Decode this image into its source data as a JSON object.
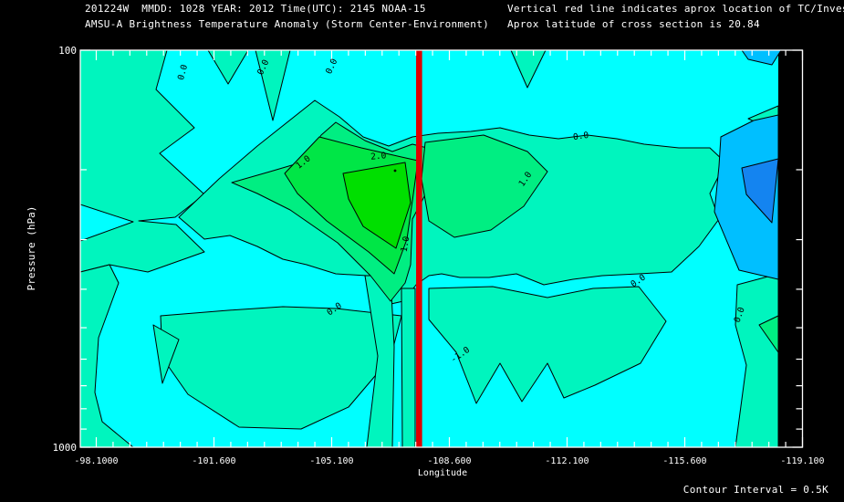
{
  "header": {
    "line1": "201224W  MMDD: 1028 YEAR: 2012 Time(UTC): 2145 NOAA-15",
    "line2": "AMSU-A Brightness Temperature Anomaly (Storm Center-Environment)",
    "note1": "Vertical red line indicates aprox location of TC/Invest",
    "note2": "Aprox latitude of cross section is 20.84"
  },
  "footer": {
    "contour_interval_label": "Contour Interval = 0.5K"
  },
  "chart_data": {
    "type": "contour",
    "title": "AMSU-A Brightness Temperature Anomaly (Storm Center-Environment)",
    "storm_id": "201224W",
    "date_mmdd": "1028",
    "year": "2012",
    "time_utc": "2145",
    "satellite": "NOAA-15",
    "xlabel": "Longitude",
    "ylabel": "Pressure (hPa)",
    "x_tick_labels": [
      "-98.1000",
      "-101.600",
      "-105.100",
      "-108.600",
      "-112.100",
      "-115.600",
      "-119.100"
    ],
    "x_tick_values": [
      -98.1,
      -101.6,
      -105.1,
      -108.6,
      -112.1,
      -115.6,
      -119.1
    ],
    "x_minor_step_deg": 0.5,
    "xlim": [
      -98.1,
      -119.1
    ],
    "y_tick_labels": [
      "100",
      "1000"
    ],
    "y_tick_values": [
      100,
      1000
    ],
    "y_minor_ticks": [
      200,
      300,
      400,
      500,
      600,
      700,
      800,
      900
    ],
    "ylim": [
      100,
      1000
    ],
    "y_scale": "log",
    "grid": false,
    "contour_interval_K": 0.5,
    "labeled_contours_K": [
      -1.0,
      0.0,
      1.0,
      2.0
    ],
    "red_line_longitude": -107.7,
    "cross_section_latitude": 20.84,
    "warm_core": {
      "max_anomaly_K": 2.0,
      "pressure_hPa": 300,
      "longitude": -106.5
    },
    "colors": {
      "background": "#000000",
      "text": "#FFFFFF",
      "frame": "#FFFFFF",
      "contour_line": "#000000",
      "red_line": "#DE0000",
      "cyan": "#00FFFF",
      "teal": "#00F5BE",
      "spring": "#00EE82",
      "green": "#00E646",
      "core": "#00DF00",
      "light_blue": "#00BFFF",
      "blue": "#1484F0"
    },
    "contour_labels": [
      {
        "t": "0.0",
        "x": 203,
        "y": 80,
        "r": -75
      },
      {
        "t": "0.0",
        "x": 291,
        "y": 75,
        "r": -65
      },
      {
        "t": "0.0",
        "x": 366,
        "y": 74,
        "r": -65
      },
      {
        "t": "0.0",
        "x": 637,
        "y": 152,
        "r": -8
      },
      {
        "t": "1.0",
        "x": 334,
        "y": 180,
        "r": -38
      },
      {
        "t": "2.0",
        "x": 415,
        "y": 174,
        "r": -5
      },
      {
        "t": "1.0",
        "x": 578,
        "y": 198,
        "r": -55
      },
      {
        "t": "1.0",
        "x": 447,
        "y": 268,
        "r": -80
      },
      {
        "t": "0.0",
        "x": 368,
        "y": 341,
        "r": -35
      },
      {
        "t": "0.0",
        "x": 701,
        "y": 310,
        "r": -35
      },
      {
        "t": "-1.0",
        "x": 506,
        "y": 391,
        "r": -35
      },
      {
        "t": "0.0",
        "x": 813,
        "y": 346,
        "r": -70
      }
    ],
    "regions": [
      {
        "n": "teal-left-column",
        "c": "teal",
        "p": [
          88,
          55,
          183,
          55,
          171,
          98,
          213,
          140,
          175,
          168,
          224,
          213,
          192,
          238,
          152,
          242,
          193,
          246,
          224,
          276,
          162,
          298,
          120,
          290,
          88,
          298
        ]
      },
      {
        "n": "cyan-left-notch",
        "c": "cyan",
        "p": [
          88,
          224,
          146,
          243,
          88,
          264
        ]
      },
      {
        "n": "teal-left-strip",
        "c": "teal",
        "p": [
          88,
          298,
          120,
          290,
          130,
          310,
          108,
          370,
          104,
          430,
          112,
          462,
          146,
          490,
          88,
          490
        ]
      },
      {
        "n": "teal-main-band",
        "c": "teal",
        "p": [
          196,
          238,
          240,
          196,
          282,
          160,
          345,
          110,
          372,
          128,
          398,
          150,
          426,
          160,
          452,
          150,
          480,
          146,
          516,
          144,
          548,
          140,
          580,
          148,
          612,
          152,
          644,
          148,
          676,
          152,
          706,
          158,
          744,
          162,
          778,
          162,
          795,
          178,
          778,
          212,
          788,
          240,
          766,
          270,
          736,
          298,
          700,
          300,
          660,
          302,
          628,
          306,
          596,
          312,
          566,
          300,
          536,
          304,
          504,
          304,
          484,
          300,
          470,
          302,
          456,
          312,
          442,
          330,
          424,
          334,
          402,
          302,
          368,
          300,
          336,
          290,
          310,
          284,
          282,
          270,
          252,
          258,
          224,
          262
        ]
      },
      {
        "n": "teal-top-spike-a",
        "c": "teal",
        "p": [
          228,
          55,
          272,
          55,
          250,
          92
        ]
      },
      {
        "n": "teal-top-spike-b",
        "c": "teal",
        "p": [
          280,
          55,
          318,
          55,
          299,
          132
        ]
      },
      {
        "n": "teal-top-spike-c",
        "c": "teal",
        "p": [
          560,
          55,
          598,
          55,
          578,
          96
        ]
      },
      {
        "n": "teal-bottomleft-blob",
        "c": "teal",
        "p": [
          176,
          346,
          250,
          340,
          310,
          336,
          368,
          338,
          440,
          346,
          428,
          392,
          382,
          446,
          330,
          470,
          262,
          468,
          206,
          432,
          178,
          392
        ]
      },
      {
        "n": "teal-mini-triangle",
        "c": "teal",
        "p": [
          168,
          356,
          196,
          372,
          178,
          420
        ]
      },
      {
        "n": "teal-channel",
        "c": "teal",
        "p": [
          400,
          302,
          428,
          302,
          432,
          380,
          430,
          490,
          402,
          490,
          414,
          390
        ]
      },
      {
        "n": "teal-channel-2",
        "c": "teal",
        "p": [
          440,
          316,
          455,
          316,
          455,
          490,
          441,
          490
        ]
      },
      {
        "n": "teal-bottomright-band",
        "c": "teal",
        "p": [
          470,
          316,
          540,
          314,
          600,
          326,
          650,
          316,
          700,
          314,
          730,
          352,
          702,
          398,
          652,
          422,
          618,
          436,
          600,
          398,
          572,
          440,
          548,
          398,
          522,
          442,
          500,
          386,
          470,
          350
        ]
      },
      {
        "n": "teal-right-column",
        "c": "teal",
        "p": [
          808,
          312,
          853,
          300,
          853,
          490,
          806,
          490,
          818,
          400,
          806,
          356
        ]
      },
      {
        "n": "spring-right-wedge",
        "c": "spring",
        "p": [
          832,
          356,
          853,
          346,
          853,
          386
        ]
      },
      {
        "n": "teal-right-tongue",
        "c": "teal",
        "p": [
          820,
          130,
          853,
          116,
          853,
          146
        ]
      },
      {
        "n": "spring-plume",
        "c": "spring",
        "p": [
          254,
          200,
          296,
          188,
          330,
          178,
          352,
          148,
          368,
          134,
          400,
          154,
          430,
          166,
          452,
          158,
          468,
          162,
          473,
          200,
          452,
          240,
          450,
          290,
          444,
          310,
          428,
          330,
          406,
          302,
          370,
          266,
          318,
          230,
          282,
          212
        ]
      },
      {
        "n": "green-band",
        "c": "green",
        "p": [
          312,
          190,
          350,
          150,
          396,
          162,
          440,
          172,
          458,
          176,
          452,
          220,
          446,
          262,
          432,
          300,
          404,
          276,
          358,
          242,
          326,
          212
        ]
      },
      {
        "n": "green-core",
        "c": "core",
        "p": [
          376,
          190,
          444,
          178,
          450,
          222,
          434,
          272,
          398,
          248,
          382,
          218
        ]
      },
      {
        "n": "spring-east-tongue",
        "c": "spring",
        "p": [
          466,
          156,
          530,
          148,
          578,
          166,
          600,
          188,
          574,
          226,
          538,
          252,
          498,
          260,
          470,
          242,
          462,
          196
        ]
      },
      {
        "n": "lightblue-patch",
        "c": "light_blue",
        "p": [
          790,
          150,
          826,
          132,
          853,
          126,
          853,
          306,
          810,
          296,
          783,
          232,
          788,
          182
        ]
      },
      {
        "n": "blue-patch",
        "c": "blue",
        "p": [
          813,
          184,
          853,
          174,
          846,
          244,
          818,
          213
        ]
      },
      {
        "n": "lightblue-top",
        "c": "light_blue",
        "p": [
          813,
          55,
          856,
          55,
          846,
          71,
          820,
          65
        ]
      }
    ]
  }
}
